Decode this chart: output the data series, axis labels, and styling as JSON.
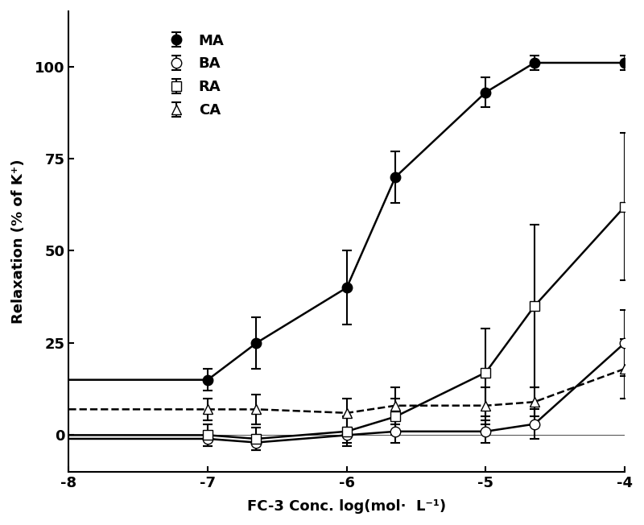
{
  "MA_x": [
    -7,
    -6.65,
    -6,
    -5.65,
    -5,
    -4.65,
    -4
  ],
  "MA_y": [
    15,
    25,
    40,
    70,
    93,
    101,
    101
  ],
  "MA_yerr": [
    3,
    7,
    10,
    7,
    4,
    2,
    2
  ],
  "BA_x": [
    -7,
    -6.65,
    -6,
    -5.65,
    -5,
    -4.65,
    -4
  ],
  "BA_y": [
    -1,
    -2,
    0,
    1,
    1,
    3,
    25
  ],
  "BA_yerr": [
    2,
    2,
    2,
    3,
    3,
    4,
    9
  ],
  "RA_x": [
    -7,
    -6.65,
    -6,
    -5.65,
    -5,
    -4.65,
    -4
  ],
  "RA_y": [
    0,
    -1,
    1,
    5,
    17,
    35,
    62
  ],
  "RA_yerr": [
    3,
    3,
    4,
    5,
    12,
    22,
    20
  ],
  "CA_x": [
    -7,
    -6.65,
    -6,
    -5.65,
    -5,
    -4.65,
    -4
  ],
  "CA_y": [
    7,
    7,
    6,
    8,
    8,
    9,
    18
  ],
  "CA_yerr": [
    3,
    4,
    4,
    5,
    5,
    4,
    8
  ],
  "xlim": [
    -8,
    -4
  ],
  "ylim": [
    -10,
    115
  ],
  "xticks": [
    -8,
    -7,
    -6,
    -5,
    -4
  ],
  "yticks": [
    0,
    25,
    50,
    75,
    100
  ],
  "xlabel": "FC-3 Conc. log(mol·  L⁻¹)",
  "ylabel": "Relaxation (% of K⁺)",
  "background_color": "#ffffff",
  "line_color": "#000000",
  "figsize": [
    8.0,
    6.52
  ],
  "dpi": 100
}
